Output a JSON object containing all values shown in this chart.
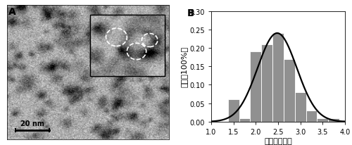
{
  "bar_centers": [
    1.5,
    1.75,
    2.0,
    2.25,
    2.5,
    2.75,
    3.0,
    3.25,
    3.5,
    3.75
  ],
  "bar_heights": [
    0.06,
    0.01,
    0.19,
    0.21,
    0.24,
    0.17,
    0.08,
    0.03,
    0.01,
    0.01
  ],
  "bar_width": 0.25,
  "bar_color": "#909090",
  "bar_edgecolor": "#ffffff",
  "xlim": [
    1.0,
    4.0
  ],
  "ylim": [
    0.0,
    0.3
  ],
  "xticks": [
    1.0,
    1.5,
    2.0,
    2.5,
    3.0,
    3.5,
    4.0
  ],
  "yticks": [
    0.0,
    0.05,
    0.1,
    0.15,
    0.2,
    0.25,
    0.3
  ],
  "xlabel": "直径（纳米）",
  "ylabel": "分布（100%）",
  "curve_color": "#000000",
  "curve_lw": 1.6,
  "gauss_mean": 2.48,
  "gauss_std": 0.44,
  "gauss_amplitude": 0.24,
  "tick_fontsize": 7,
  "label_fontsize": 8,
  "panel_label_fontsize": 10,
  "tem_bg_color": "#b0b0b0",
  "inset_bg_color": "#c0c0c0",
  "scalebar_color": "#000000"
}
